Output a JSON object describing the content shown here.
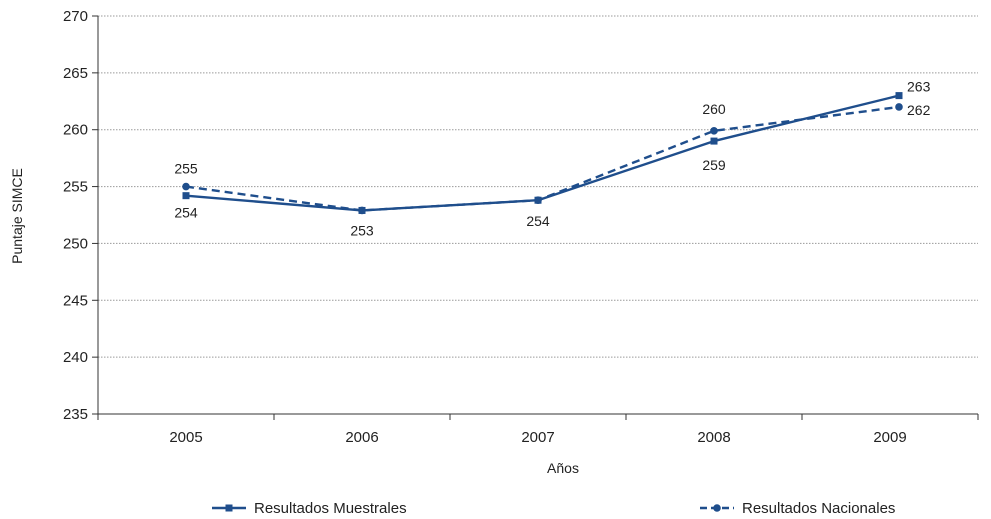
{
  "chart_data": {
    "type": "line",
    "categories": [
      "2005",
      "2006",
      "2007",
      "2008",
      "2009"
    ],
    "ylabel": "Puntaje SIMCE",
    "xlabel": "Años",
    "ylim": [
      235,
      270
    ],
    "yticks": [
      235,
      240,
      245,
      250,
      255,
      260,
      265,
      270
    ],
    "grid": true,
    "legend_position": "bottom",
    "series": [
      {
        "name": "Resultados Muestrales",
        "values": [
          254.2,
          252.9,
          253.8,
          259.0,
          263.0
        ],
        "labels": [
          "254",
          "253",
          "254",
          "259",
          "263"
        ],
        "color": "#1f4e8c",
        "line_style": "solid",
        "marker": "square"
      },
      {
        "name": "Resultados Nacionales",
        "values": [
          255.0,
          252.9,
          253.8,
          259.9,
          262.0
        ],
        "labels": [
          "255",
          "",
          "",
          "260",
          "262"
        ],
        "color": "#1f4e8c",
        "line_style": "dashed",
        "marker": "circle"
      }
    ]
  }
}
